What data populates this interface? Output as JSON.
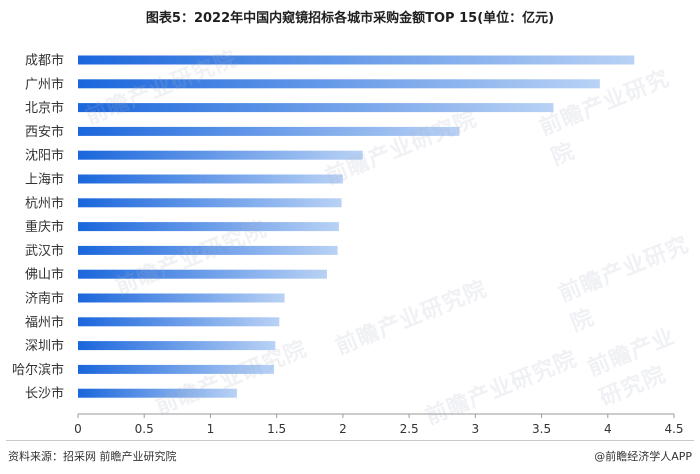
{
  "title": "图表5：2022年中国内窥镜招标各城市采购金额TOP 15(单位：亿元)",
  "watermark": "前瞻产业研究院",
  "footer": {
    "source": "资料来源：招采网 前瞻产业研究院",
    "brand": "@前瞻经济学人APP"
  },
  "colors": {
    "bar_start": "#1a66dc",
    "bar_end": "#b9d2f5",
    "axis": "#999999"
  },
  "chart_data": {
    "type": "bar",
    "orientation": "horizontal",
    "title": "图表5：2022年中国内窥镜招标各城市采购金额TOP 15(单位：亿元)",
    "categories": [
      "成都市",
      "广州市",
      "北京市",
      "西安市",
      "沈阳市",
      "上海市",
      "杭州市",
      "重庆市",
      "武汉市",
      "佛山市",
      "济南市",
      "福州市",
      "深圳市",
      "哈尔滨市",
      "长沙市"
    ],
    "values": [
      4.2,
      3.94,
      3.59,
      2.88,
      2.15,
      2.0,
      1.99,
      1.97,
      1.96,
      1.88,
      1.56,
      1.52,
      1.49,
      1.48,
      1.2
    ],
    "xlim": [
      0,
      4.5
    ],
    "x_ticks": [
      "0",
      "0.5",
      "1",
      "1.5",
      "2",
      "2.5",
      "3",
      "3.5",
      "4",
      "4.5"
    ],
    "grid": false,
    "legend": "none"
  }
}
